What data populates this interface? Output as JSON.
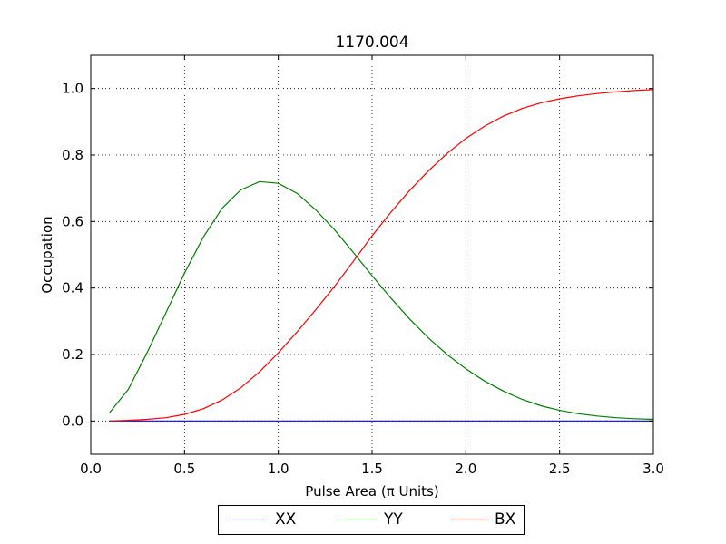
{
  "chart_data": {
    "type": "line",
    "title": "1170.004",
    "xlabel": "Pulse Area (π Units)",
    "ylabel": "Occupation",
    "xlim": [
      0.0,
      3.0
    ],
    "ylim": [
      -0.1,
      1.1
    ],
    "xticks": [
      "0.0",
      "0.5",
      "1.0",
      "1.5",
      "2.0",
      "2.5",
      "3.0"
    ],
    "yticks": [
      "0.0",
      "0.2",
      "0.4",
      "0.6",
      "0.8",
      "1.0"
    ],
    "grid": true,
    "legend_position": "bottom-center",
    "x": [
      0.1,
      0.2,
      0.3,
      0.4,
      0.5,
      0.6,
      0.7,
      0.8,
      0.9,
      1.0,
      1.1,
      1.2,
      1.3,
      1.4,
      1.5,
      1.6,
      1.7,
      1.8,
      1.9,
      2.0,
      2.1,
      2.2,
      2.3,
      2.4,
      2.5,
      2.6,
      2.7,
      2.8,
      2.9,
      3.0
    ],
    "series": [
      {
        "name": "XX",
        "color": "#0000ff",
        "values": [
          0,
          0,
          0,
          0,
          0,
          0,
          0,
          0,
          0,
          0,
          0,
          0,
          0,
          0,
          0,
          0,
          0,
          0,
          0,
          0,
          0,
          0,
          0,
          0,
          0,
          0,
          0,
          0,
          0,
          0
        ]
      },
      {
        "name": "YY",
        "color": "#008000",
        "values": [
          0.025,
          0.095,
          0.205,
          0.325,
          0.445,
          0.553,
          0.64,
          0.695,
          0.72,
          0.715,
          0.685,
          0.635,
          0.575,
          0.507,
          0.437,
          0.37,
          0.307,
          0.25,
          0.2,
          0.157,
          0.12,
          0.09,
          0.065,
          0.046,
          0.032,
          0.022,
          0.015,
          0.01,
          0.007,
          0.005
        ]
      },
      {
        "name": "BX",
        "color": "#ff0000",
        "values": [
          0.0,
          0.002,
          0.005,
          0.01,
          0.02,
          0.037,
          0.063,
          0.1,
          0.148,
          0.205,
          0.268,
          0.335,
          0.405,
          0.48,
          0.557,
          0.628,
          0.693,
          0.752,
          0.805,
          0.85,
          0.887,
          0.917,
          0.94,
          0.957,
          0.969,
          0.978,
          0.985,
          0.99,
          0.994,
          0.997
        ]
      }
    ]
  }
}
